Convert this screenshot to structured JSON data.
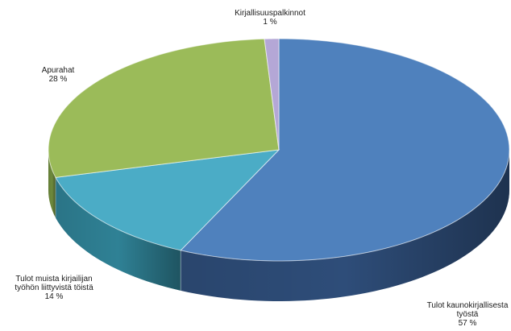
{
  "chart_data": {
    "type": "pie",
    "title": "",
    "slices": [
      {
        "label_lines": [
          "Tulot kaunokirjallisesta",
          "työstä"
        ],
        "value": 57,
        "value_text": "57 %",
        "top_color": "#4f81bd",
        "side_color": "#2e4d79"
      },
      {
        "label_lines": [
          "Tulot muista kirjailijan",
          "työhön liittyvistä töistä"
        ],
        "value": 14,
        "value_text": "14 %",
        "top_color": "#4bacc6",
        "side_color": "#2f8195"
      },
      {
        "label_lines": [
          "Apurahat"
        ],
        "value": 28,
        "value_text": "28 %",
        "top_color": "#9bbb59",
        "side_color": "#6e8a3c"
      },
      {
        "label_lines": [
          "Kirjallisuuspalkinnot"
        ],
        "value": 1,
        "value_text": "1 %",
        "top_color": "#b4a7d6",
        "side_color": "#7f72a8"
      }
    ],
    "legend": "none",
    "style": "3d-pie"
  }
}
